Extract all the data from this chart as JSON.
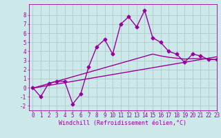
{
  "x": [
    0,
    1,
    2,
    3,
    4,
    5,
    6,
    7,
    8,
    9,
    10,
    11,
    12,
    13,
    14,
    15,
    16,
    17,
    18,
    19,
    20,
    21,
    22,
    23
  ],
  "y_main": [
    0,
    -1,
    0.5,
    0.7,
    0.7,
    -1.8,
    -0.7,
    2.3,
    4.5,
    5.3,
    3.7,
    7.0,
    7.8,
    6.7,
    8.5,
    5.5,
    5.0,
    4.0,
    3.7,
    2.8,
    3.7,
    3.5,
    3.1,
    3.1
  ],
  "y_line1": [
    -0.05,
    0.1,
    0.25,
    0.4,
    0.55,
    0.7,
    0.85,
    1.0,
    1.15,
    1.3,
    1.45,
    1.6,
    1.75,
    1.9,
    2.05,
    2.2,
    2.35,
    2.5,
    2.65,
    2.8,
    2.95,
    3.1,
    3.25,
    3.4
  ],
  "y_line2": [
    -0.05,
    0.2,
    0.45,
    0.7,
    0.95,
    1.2,
    1.45,
    1.7,
    1.95,
    2.2,
    2.45,
    2.7,
    2.95,
    3.2,
    3.45,
    3.7,
    3.5,
    3.35,
    3.25,
    3.15,
    3.2,
    3.2,
    3.15,
    3.1
  ],
  "color": "#990099",
  "bg_color": "#cce8e8",
  "grid_color": "#b0c8c8",
  "xlabel": "Windchill (Refroidissement éolien,°C)",
  "ylim": [
    -2.5,
    9.2
  ],
  "xlim": [
    -0.5,
    23
  ],
  "yticks": [
    -2,
    -1,
    0,
    1,
    2,
    3,
    4,
    5,
    6,
    7,
    8
  ],
  "xticks": [
    0,
    1,
    2,
    3,
    4,
    5,
    6,
    7,
    8,
    9,
    10,
    11,
    12,
    13,
    14,
    15,
    16,
    17,
    18,
    19,
    20,
    21,
    22,
    23
  ],
  "marker": "D",
  "markersize": 2.5,
  "linewidth": 1.0,
  "xlabel_fontsize": 6,
  "tick_fontsize": 5.5
}
